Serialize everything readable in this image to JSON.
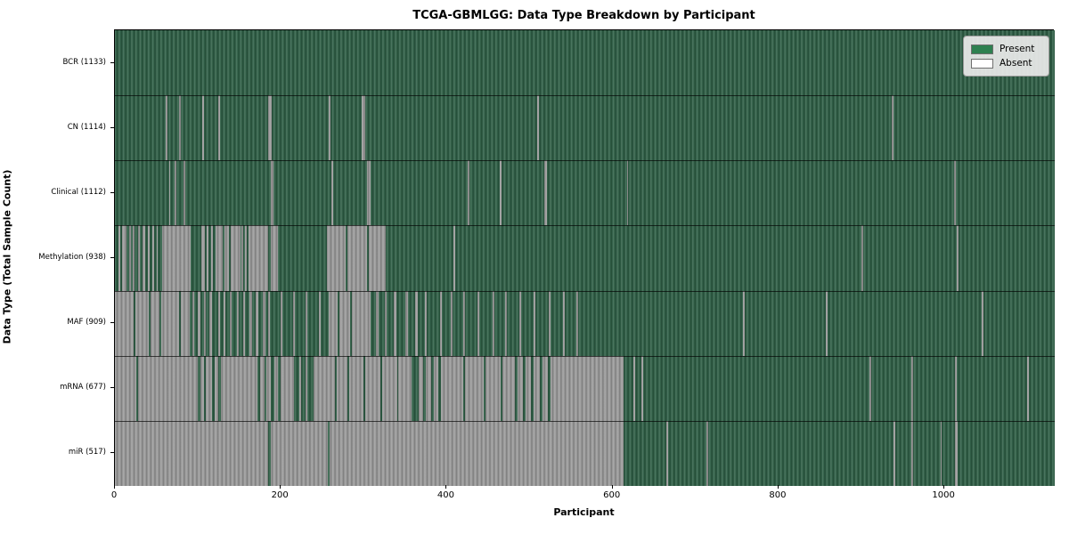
{
  "title": "TCGA-GBMLGG: Data Type Breakdown by Participant",
  "chart_data": {
    "type": "heatmap",
    "title": "TCGA-GBMLGG: Data Type Breakdown by Participant",
    "xlabel": "Participant",
    "ylabel": "Data Type (Total Sample Count)",
    "x_range": [
      0,
      1133
    ],
    "x_ticks": [
      0,
      200,
      400,
      600,
      800,
      1000
    ],
    "grid": false,
    "legend_position": "upper right",
    "legend": [
      {
        "label": "Present",
        "color": "#2e8050"
      },
      {
        "label": "Absent",
        "color": "#ffffff"
      }
    ],
    "colors": {
      "present_fill": "#2e5e45",
      "absent_fill": "#9a9a9a",
      "row_separator": "#000000",
      "legend_bg": "#eaeaea"
    },
    "rows": [
      {
        "label": "BCR (1133)",
        "data_type": "BCR",
        "total_samples": 1133,
        "absent_segments": []
      },
      {
        "label": "CN (1114)",
        "data_type": "CN",
        "total_samples": 1114,
        "absent_segments": [
          [
            61,
            63
          ],
          [
            77,
            79
          ],
          [
            105,
            107
          ],
          [
            125,
            127
          ],
          [
            185,
            189
          ],
          [
            258,
            260
          ],
          [
            298,
            302
          ],
          [
            509,
            511
          ],
          [
            937,
            939
          ]
        ]
      },
      {
        "label": "Clinical (1112)",
        "data_type": "Clinical",
        "total_samples": 1112,
        "absent_segments": [
          [
            65,
            67
          ],
          [
            72,
            74
          ],
          [
            83,
            85
          ],
          [
            188,
            191
          ],
          [
            261,
            263
          ],
          [
            304,
            308
          ],
          [
            425,
            427
          ],
          [
            464,
            466
          ],
          [
            518,
            521
          ],
          [
            617,
            619
          ],
          [
            1012,
            1014
          ]
        ]
      },
      {
        "label": "Methylation (938)",
        "data_type": "Methylation",
        "total_samples": 938,
        "absent_segments": [
          [
            4,
            6
          ],
          [
            9,
            14
          ],
          [
            17,
            19
          ],
          [
            22,
            24
          ],
          [
            28,
            30
          ],
          [
            33,
            36
          ],
          [
            40,
            42
          ],
          [
            45,
            47
          ],
          [
            50,
            52
          ],
          [
            57,
            91
          ],
          [
            104,
            108
          ],
          [
            111,
            113
          ],
          [
            116,
            118
          ],
          [
            121,
            130
          ],
          [
            132,
            138
          ],
          [
            140,
            151
          ],
          [
            153,
            155
          ],
          [
            157,
            159
          ],
          [
            161,
            185
          ],
          [
            188,
            197
          ],
          [
            256,
            278
          ],
          [
            280,
            304
          ],
          [
            306,
            326
          ],
          [
            408,
            410
          ],
          [
            900,
            902
          ],
          [
            1015,
            1017
          ]
        ]
      },
      {
        "label": "MAF (909)",
        "data_type": "MAF",
        "total_samples": 909,
        "absent_segments": [
          [
            0,
            23
          ],
          [
            25,
            41
          ],
          [
            43,
            54
          ],
          [
            56,
            77
          ],
          [
            79,
            90
          ],
          [
            93,
            96
          ],
          [
            100,
            103
          ],
          [
            107,
            110
          ],
          [
            114,
            117
          ],
          [
            125,
            127
          ],
          [
            131,
            133
          ],
          [
            139,
            141
          ],
          [
            147,
            149
          ],
          [
            155,
            157
          ],
          [
            162,
            165
          ],
          [
            170,
            173
          ],
          [
            178,
            181
          ],
          [
            185,
            187
          ],
          [
            200,
            202
          ],
          [
            215,
            217
          ],
          [
            230,
            232
          ],
          [
            246,
            248
          ],
          [
            258,
            269
          ],
          [
            271,
            284
          ],
          [
            286,
            308
          ],
          [
            315,
            318
          ],
          [
            325,
            328
          ],
          [
            336,
            339
          ],
          [
            350,
            353
          ],
          [
            362,
            365
          ],
          [
            374,
            376
          ],
          [
            392,
            394
          ],
          [
            405,
            407
          ],
          [
            420,
            422
          ],
          [
            437,
            439
          ],
          [
            455,
            457
          ],
          [
            470,
            472
          ],
          [
            488,
            490
          ],
          [
            505,
            507
          ],
          [
            523,
            525
          ],
          [
            540,
            542
          ],
          [
            556,
            558
          ],
          [
            757,
            759
          ],
          [
            857,
            859
          ],
          [
            1045,
            1047
          ]
        ]
      },
      {
        "label": "mRNA (677)",
        "data_type": "mRNA",
        "total_samples": 677,
        "absent_segments": [
          [
            0,
            26
          ],
          [
            28,
            100
          ],
          [
            103,
            107
          ],
          [
            110,
            117
          ],
          [
            120,
            125
          ],
          [
            128,
            172
          ],
          [
            175,
            180
          ],
          [
            183,
            188
          ],
          [
            192,
            197
          ],
          [
            200,
            216
          ],
          [
            222,
            224
          ],
          [
            230,
            232
          ],
          [
            240,
            265
          ],
          [
            267,
            280
          ],
          [
            282,
            300
          ],
          [
            302,
            320
          ],
          [
            322,
            340
          ],
          [
            342,
            358
          ],
          [
            366,
            372
          ],
          [
            375,
            381
          ],
          [
            384,
            390
          ],
          [
            393,
            420
          ],
          [
            422,
            445
          ],
          [
            447,
            465
          ],
          [
            467,
            482
          ],
          [
            485,
            492
          ],
          [
            495,
            502
          ],
          [
            505,
            512
          ],
          [
            515,
            522
          ],
          [
            525,
            613
          ],
          [
            625,
            627
          ],
          [
            635,
            637
          ],
          [
            910,
            912
          ],
          [
            960,
            962
          ],
          [
            1013,
            1015
          ],
          [
            1100,
            1102
          ]
        ]
      },
      {
        "label": "miR (517)",
        "data_type": "miR",
        "total_samples": 517,
        "absent_segments": [
          [
            0,
            185
          ],
          [
            188,
            257
          ],
          [
            259,
            613
          ],
          [
            665,
            667
          ],
          [
            713,
            715
          ],
          [
            939,
            941
          ],
          [
            960,
            962
          ],
          [
            995,
            997
          ],
          [
            1013,
            1016
          ]
        ]
      }
    ]
  }
}
